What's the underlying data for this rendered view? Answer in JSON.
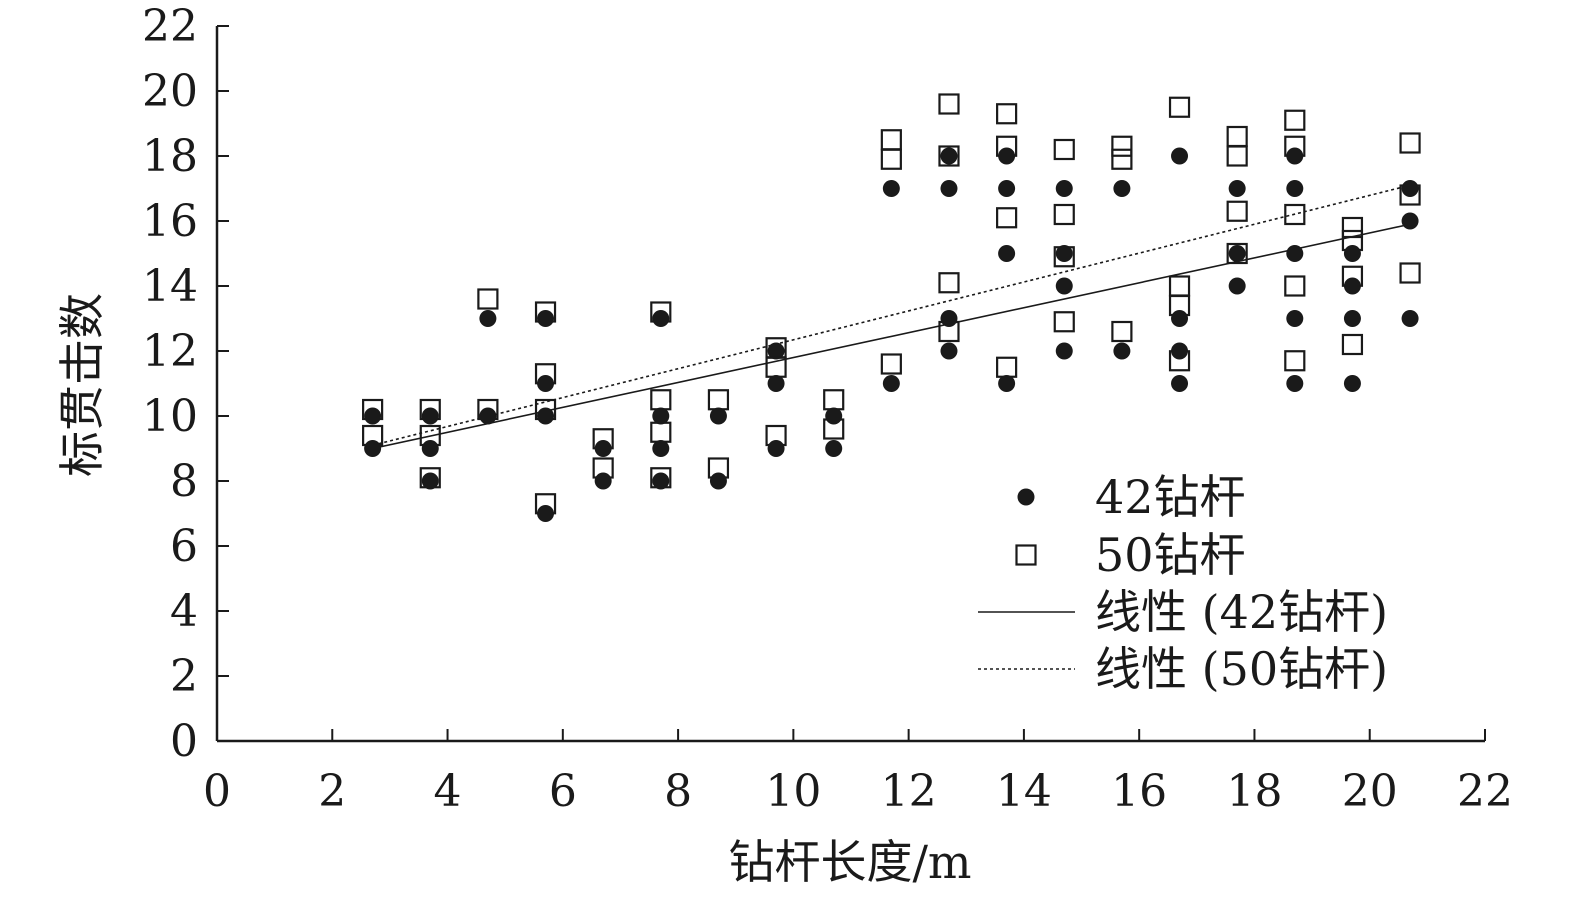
{
  "chart_data": {
    "type": "scatter",
    "xlabel": "钻杆长度/m",
    "ylabel": "标贯击数",
    "xlim": [
      0,
      22
    ],
    "ylim": [
      0,
      22
    ],
    "xticks": [
      0,
      2,
      4,
      6,
      8,
      10,
      12,
      14,
      16,
      18,
      20,
      22
    ],
    "yticks": [
      0,
      2,
      4,
      6,
      8,
      10,
      12,
      14,
      16,
      18,
      20,
      22
    ],
    "grid": false,
    "legend_position": "bottom-right",
    "series": [
      {
        "name": "42钻杆",
        "marker": "filled-circle",
        "color": "#1a1a1a",
        "points": [
          [
            2.7,
            10
          ],
          [
            2.7,
            9
          ],
          [
            3.7,
            10
          ],
          [
            3.7,
            9
          ],
          [
            3.7,
            8
          ],
          [
            4.7,
            13
          ],
          [
            4.7,
            10
          ],
          [
            5.7,
            13
          ],
          [
            5.7,
            11
          ],
          [
            5.7,
            10
          ],
          [
            5.7,
            7
          ],
          [
            6.7,
            9
          ],
          [
            6.7,
            8
          ],
          [
            7.7,
            13
          ],
          [
            7.7,
            10
          ],
          [
            7.7,
            9
          ],
          [
            7.7,
            8
          ],
          [
            8.7,
            10
          ],
          [
            8.7,
            8
          ],
          [
            9.7,
            12
          ],
          [
            9.7,
            11
          ],
          [
            9.7,
            9
          ],
          [
            10.7,
            10
          ],
          [
            10.7,
            9
          ],
          [
            11.7,
            17
          ],
          [
            11.7,
            11
          ],
          [
            12.7,
            18
          ],
          [
            12.7,
            17
          ],
          [
            12.7,
            13
          ],
          [
            12.7,
            12
          ],
          [
            13.7,
            18
          ],
          [
            13.7,
            17
          ],
          [
            13.7,
            15
          ],
          [
            13.7,
            11
          ],
          [
            14.7,
            17
          ],
          [
            14.7,
            15
          ],
          [
            14.7,
            14
          ],
          [
            14.7,
            12
          ],
          [
            15.7,
            17
          ],
          [
            15.7,
            12
          ],
          [
            16.7,
            18
          ],
          [
            16.7,
            13
          ],
          [
            16.7,
            12
          ],
          [
            16.7,
            11
          ],
          [
            17.7,
            17
          ],
          [
            17.7,
            15
          ],
          [
            17.7,
            14
          ],
          [
            18.7,
            18
          ],
          [
            18.7,
            17
          ],
          [
            18.7,
            15
          ],
          [
            18.7,
            13
          ],
          [
            18.7,
            11
          ],
          [
            19.7,
            15
          ],
          [
            19.7,
            14
          ],
          [
            19.7,
            13
          ],
          [
            19.7,
            11
          ],
          [
            20.7,
            17
          ],
          [
            20.7,
            16
          ],
          [
            20.7,
            13
          ]
        ]
      },
      {
        "name": "50钻杆",
        "marker": "open-square",
        "color": "#1a1a1a",
        "points": [
          [
            2.7,
            10.2
          ],
          [
            2.7,
            9.4
          ],
          [
            3.7,
            10.2
          ],
          [
            3.7,
            9.4
          ],
          [
            3.7,
            8.1
          ],
          [
            4.7,
            13.6
          ],
          [
            4.7,
            10.2
          ],
          [
            5.7,
            13.2
          ],
          [
            5.7,
            11.3
          ],
          [
            5.7,
            10.2
          ],
          [
            5.7,
            7.3
          ],
          [
            6.7,
            9.3
          ],
          [
            6.7,
            8.4
          ],
          [
            7.7,
            13.2
          ],
          [
            7.7,
            10.5
          ],
          [
            7.7,
            9.5
          ],
          [
            7.7,
            8.1
          ],
          [
            8.7,
            10.5
          ],
          [
            8.7,
            8.4
          ],
          [
            9.7,
            12.1
          ],
          [
            9.7,
            11.5
          ],
          [
            9.7,
            9.4
          ],
          [
            10.7,
            10.5
          ],
          [
            10.7,
            9.6
          ],
          [
            11.7,
            18.5
          ],
          [
            11.7,
            17.9
          ],
          [
            11.7,
            11.6
          ],
          [
            12.7,
            19.6
          ],
          [
            12.7,
            18
          ],
          [
            12.7,
            14.1
          ],
          [
            12.7,
            12.6
          ],
          [
            13.7,
            19.3
          ],
          [
            13.7,
            18.3
          ],
          [
            13.7,
            16.1
          ],
          [
            13.7,
            11.5
          ],
          [
            14.7,
            18.2
          ],
          [
            14.7,
            16.2
          ],
          [
            14.7,
            14.9
          ],
          [
            14.7,
            12.9
          ],
          [
            15.7,
            18.3
          ],
          [
            15.7,
            17.9
          ],
          [
            15.7,
            12.6
          ],
          [
            16.7,
            19.5
          ],
          [
            16.7,
            14
          ],
          [
            16.7,
            13.4
          ],
          [
            16.7,
            11.7
          ],
          [
            17.7,
            18.6
          ],
          [
            17.7,
            18
          ],
          [
            17.7,
            16.3
          ],
          [
            17.7,
            15
          ],
          [
            18.7,
            19.1
          ],
          [
            18.7,
            18.3
          ],
          [
            18.7,
            16.2
          ],
          [
            18.7,
            14
          ],
          [
            18.7,
            11.7
          ],
          [
            19.7,
            15.8
          ],
          [
            19.7,
            15.4
          ],
          [
            19.7,
            14.3
          ],
          [
            19.7,
            12.2
          ],
          [
            20.7,
            18.4
          ],
          [
            20.7,
            16.8
          ],
          [
            20.7,
            14.4
          ]
        ]
      },
      {
        "name": "线性 (42钻杆)",
        "line_style": "solid",
        "color": "#1a1a1a",
        "points": [
          [
            2.7,
            9.0
          ],
          [
            20.7,
            15.9
          ]
        ]
      },
      {
        "name": "线性 (50钻杆)",
        "line_style": "dotted",
        "color": "#1a1a1a",
        "points": [
          [
            2.7,
            9.1
          ],
          [
            20.7,
            17.1
          ]
        ]
      }
    ]
  }
}
